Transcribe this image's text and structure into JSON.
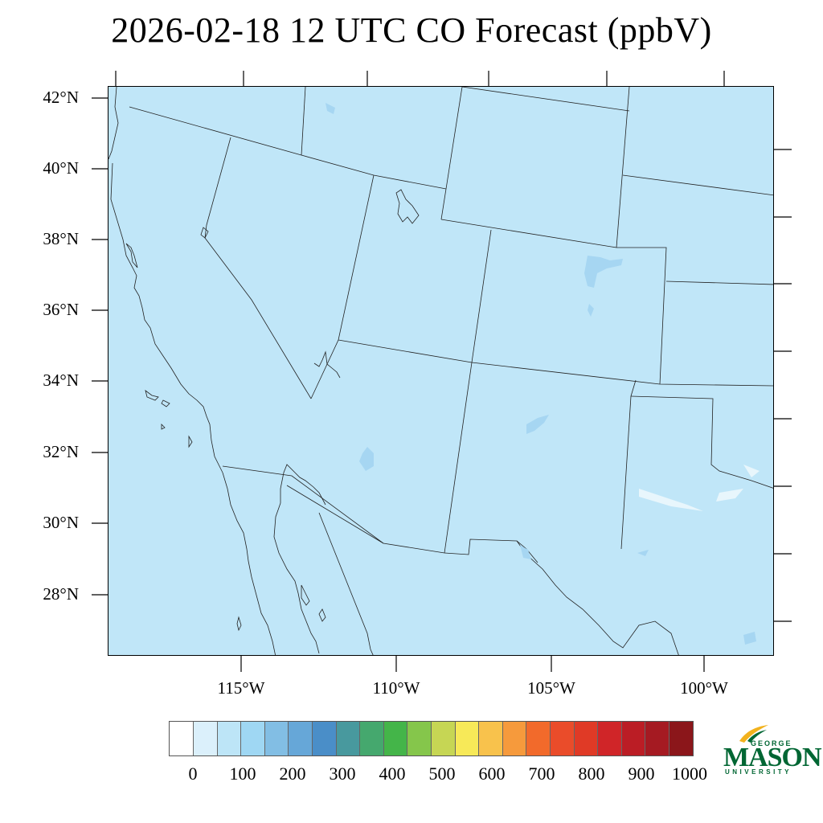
{
  "title": "2026-02-18 12 UTC CO Forecast (ppbV)",
  "map": {
    "lat_labels": [
      "42°N",
      "40°N",
      "38°N",
      "36°N",
      "34°N",
      "32°N",
      "30°N",
      "28°N"
    ],
    "lon_labels": [
      "115°W",
      "110°W",
      "105°W",
      "100°W"
    ],
    "lat_range": [
      26.4,
      42.3
    ],
    "lon_range": [
      -119.3,
      -97.9
    ],
    "background_color": "#c0e6f8",
    "feature_color": "#a6d6f2"
  },
  "colorbar": {
    "colors": [
      "#ffffff",
      "#dbf0fb",
      "#bde5f7",
      "#9fd7f3",
      "#82bee4",
      "#66a7d8",
      "#4a8ec8",
      "#48999e",
      "#45a86e",
      "#44b549",
      "#85c64b",
      "#c6d654",
      "#f7e958",
      "#f8c24c",
      "#f69a3c",
      "#f26a2b",
      "#ea4c2a",
      "#e03a26",
      "#d02528",
      "#bb1d25",
      "#a51a22",
      "#8b161a"
    ],
    "labels": [
      "0",
      "100",
      "200",
      "300",
      "400",
      "500",
      "600",
      "700",
      "800",
      "900",
      "1000"
    ]
  },
  "logo": {
    "top": "GEORGE",
    "main": "MASON",
    "bottom": "UNIVERSITY",
    "color": "#006633",
    "accent": "#f2b21d"
  }
}
